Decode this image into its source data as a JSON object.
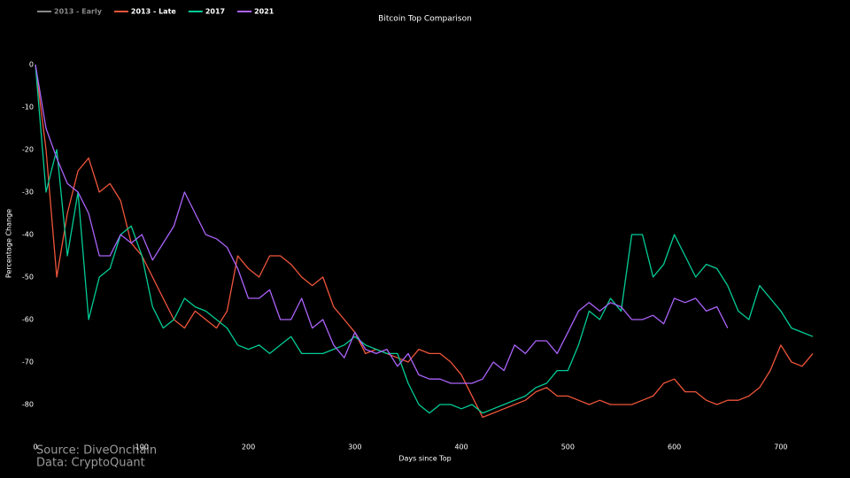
{
  "chart_data": {
    "type": "line",
    "title": "Bitcoin Top Comparison",
    "x_label": "Days since Top",
    "y_label": "Percentage Change",
    "annotations": [
      "Source: DiveOnchain",
      "Data: CryptoQuant"
    ],
    "legend": "top-left",
    "grid": false,
    "background": "#000000",
    "x": [
      0,
      10,
      20,
      30,
      40,
      50,
      60,
      70,
      80,
      90,
      100,
      110,
      120,
      130,
      140,
      150,
      160,
      170,
      180,
      190,
      200,
      210,
      220,
      230,
      240,
      250,
      260,
      270,
      280,
      290,
      300,
      310,
      320,
      330,
      340,
      350,
      360,
      370,
      380,
      390,
      400,
      410,
      420,
      430,
      440,
      450,
      460,
      470,
      480,
      490,
      500,
      510,
      520,
      530,
      540,
      550,
      560,
      570,
      580,
      590,
      600,
      610,
      620,
      630,
      640,
      650,
      660,
      670,
      680,
      690,
      700,
      710,
      720,
      730
    ],
    "xlim": [
      0,
      735
    ],
    "xticks": [
      0,
      100,
      200,
      300,
      400,
      500,
      600,
      700
    ],
    "ylim": [
      -86,
      2
    ],
    "yticks": [
      0,
      -10,
      -20,
      -30,
      -40,
      -50,
      -60,
      -70,
      -80
    ],
    "series": [
      {
        "name": "2013 - Early",
        "color": "#888888",
        "visible": false,
        "values": [
          null,
          null,
          null,
          null,
          null,
          null,
          null,
          null,
          null,
          null,
          null,
          null,
          null,
          null,
          null,
          null,
          null,
          null,
          null,
          null,
          null,
          null,
          null,
          null,
          null,
          null,
          null,
          null,
          null,
          null,
          null,
          null,
          null,
          null,
          null,
          null,
          null,
          null,
          null,
          null,
          null,
          null,
          null,
          null,
          null,
          null,
          null,
          null,
          null,
          null,
          null,
          null,
          null,
          null,
          null,
          null,
          null,
          null,
          null,
          null,
          null,
          null,
          null,
          null,
          null,
          null,
          null,
          null,
          null,
          null,
          null,
          null,
          null,
          null
        ]
      },
      {
        "name": "2013 - Late",
        "color": "#ef553b",
        "visible": true,
        "values": [
          0,
          -20,
          -50,
          -35,
          -25,
          -22,
          -30,
          -28,
          -32,
          -42,
          -45,
          -50,
          -55,
          -60,
          -62,
          -58,
          -60,
          -62,
          -58,
          -45,
          -48,
          -50,
          -45,
          -45,
          -47,
          -50,
          -52,
          -50,
          -57,
          -60,
          -63,
          -68,
          -67,
          -68,
          -69,
          -70,
          -67,
          -68,
          -68,
          -70,
          -73,
          -78,
          -83,
          -82,
          -81,
          -80,
          -79,
          -77,
          -76,
          -78,
          -78,
          -79,
          -80,
          -79,
          -80,
          -80,
          -80,
          -79,
          -78,
          -75,
          -74,
          -77,
          -77,
          -79,
          -80,
          -79,
          -79,
          -78,
          -76,
          -72,
          -66,
          -70,
          -71,
          -68
        ]
      },
      {
        "name": "2017",
        "color": "#00cc96",
        "visible": true,
        "values": [
          0,
          -30,
          -20,
          -45,
          -30,
          -60,
          -50,
          -48,
          -40,
          -38,
          -45,
          -57,
          -62,
          -60,
          -55,
          -57,
          -58,
          -60,
          -62,
          -66,
          -67,
          -66,
          -68,
          -66,
          -64,
          -68,
          -68,
          -68,
          -67,
          -66,
          -64,
          -66,
          -67,
          -68,
          -68,
          -75,
          -80,
          -82,
          -80,
          -80,
          -81,
          -80,
          -82,
          -81,
          -80,
          -79,
          -78,
          -76,
          -75,
          -72,
          -72,
          -66,
          -58,
          -60,
          -55,
          -58,
          -40,
          -40,
          -50,
          -47,
          -40,
          -45,
          -50,
          -47,
          -48,
          -52,
          -58,
          -60,
          -52,
          -55,
          -58,
          -62,
          -63,
          -64
        ]
      },
      {
        "name": "2021",
        "color": "#ab63fa",
        "visible": true,
        "values": [
          0,
          -15,
          -22,
          -28,
          -30,
          -35,
          -45,
          -45,
          -40,
          -42,
          -40,
          -46,
          -42,
          -38,
          -30,
          -35,
          -40,
          -41,
          -43,
          -48,
          -55,
          -55,
          -53,
          -60,
          -60,
          -55,
          -62,
          -60,
          -66,
          -69,
          -63,
          -67,
          -68,
          -67,
          -71,
          -68,
          -73,
          -74,
          -74,
          -75,
          -75,
          -75,
          -74,
          -70,
          -72,
          -66,
          -68,
          -65,
          -65,
          -68,
          -63,
          -58,
          -56,
          -58,
          -56,
          -57,
          -60,
          -60,
          -59,
          -61,
          -55,
          -56,
          -55,
          -58,
          -57,
          -62,
          null,
          null,
          null,
          null,
          null,
          null,
          null,
          null
        ]
      }
    ]
  }
}
